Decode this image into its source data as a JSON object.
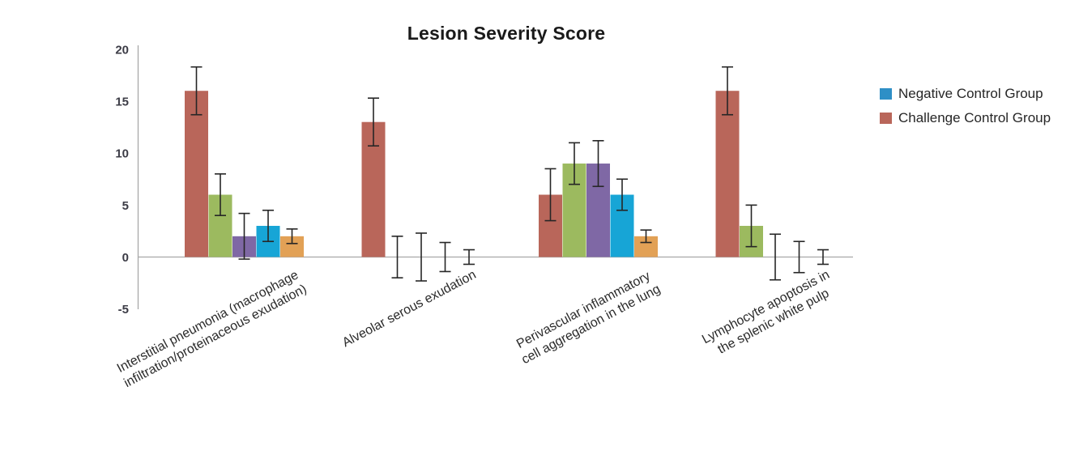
{
  "chart_data": {
    "type": "bar",
    "title": "Lesion Severity Score",
    "categories": [
      "Interstitial pneumonia (macrophage\ninfiltration/proteinaceous exudation)",
      "Alveolar serous exudation",
      "Perivascular inflammatory\ncell aggregation in the lung",
      "Lymphocyte apoptosis in\nthe splenic white pulp"
    ],
    "series": [
      {
        "name": "Challenge Control Group",
        "color": "#B9665A",
        "values": [
          16,
          13,
          6,
          16
        ],
        "errors": [
          2.3,
          2.3,
          2.5,
          2.3
        ]
      },
      {
        "name": "",
        "color": "#9CBA5F",
        "values": [
          6,
          0,
          9,
          3
        ],
        "errors": [
          2.0,
          2.0,
          2.0,
          2.0
        ]
      },
      {
        "name": "",
        "color": "#7F68A5",
        "values": [
          2,
          0,
          9,
          0
        ],
        "errors": [
          2.2,
          2.3,
          2.2,
          2.2
        ]
      },
      {
        "name": "Negative Control Group",
        "color": "#17A5D6",
        "values": [
          3,
          0,
          6,
          0
        ],
        "errors": [
          1.5,
          1.4,
          1.5,
          1.5
        ]
      },
      {
        "name": "",
        "color": "#E2A156",
        "values": [
          2,
          0,
          2,
          0
        ],
        "errors": [
          0.7,
          0.7,
          0.6,
          0.7
        ]
      }
    ],
    "legend": {
      "position": "right",
      "items": [
        {
          "label": "Negative Control Group",
          "color": "#2E8FC6"
        },
        {
          "label": "Challenge Control Group",
          "color": "#B9665A"
        }
      ]
    },
    "yticks": [
      20,
      15,
      10,
      5,
      0,
      -5
    ],
    "ylim": [
      -5,
      20
    ],
    "grid": false,
    "xlabel": "",
    "ylabel": "",
    "axis_color": "#A8A8A8",
    "error_bar_color": "#262626",
    "tick_label_color": "#3C3C46"
  }
}
